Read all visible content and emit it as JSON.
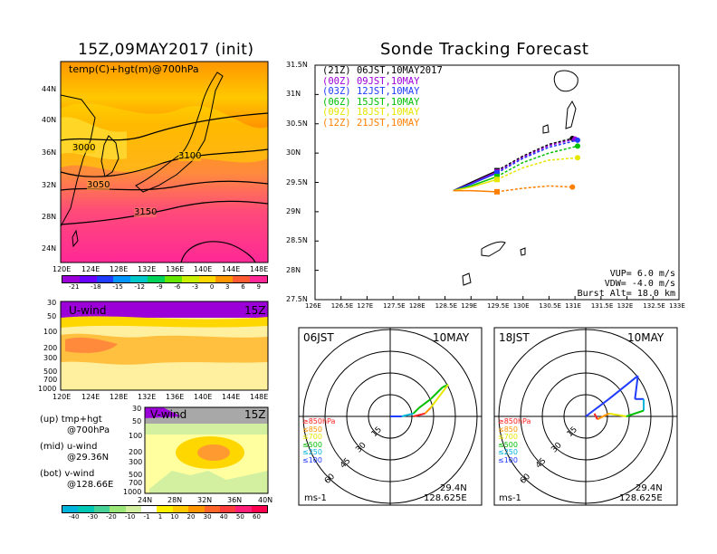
{
  "left": {
    "title": "15Z,09MAY2017 (init)",
    "map_label": "temp(C)+hgt(m)@700hPa",
    "lat_ticks": [
      "44N",
      "40N",
      "36N",
      "32N",
      "28N",
      "24N"
    ],
    "lon_ticks": [
      "120E",
      "124E",
      "128E",
      "132E",
      "136E",
      "140E",
      "144E",
      "148E"
    ],
    "contours": [
      "3000",
      "3100",
      "3050",
      "3150"
    ],
    "temp_colorbar": {
      "labels": [
        "-21",
        "-18",
        "-15",
        "-12",
        "-9",
        "-6",
        "-3",
        "0",
        "3",
        "6",
        "9"
      ],
      "colors": [
        "#9b00d9",
        "#6a00ff",
        "#1f3cff",
        "#0096ff",
        "#00c8c8",
        "#00d25a",
        "#64e600",
        "#c8f000",
        "#ffd700",
        "#ff9600",
        "#ff5a32",
        "#ff2896"
      ]
    },
    "uwind": {
      "label": "U-wind",
      "time": "15Z",
      "p_ticks": [
        "30",
        "50",
        "100",
        "200",
        "300",
        "500",
        "700",
        "1000"
      ],
      "lon_ticks": [
        "120E",
        "124E",
        "128E",
        "132E",
        "136E",
        "140E",
        "144E",
        "148E"
      ]
    },
    "vwind": {
      "label": "V-wind",
      "time": "15Z",
      "p_ticks": [
        "30",
        "50",
        "100",
        "200",
        "300",
        "500",
        "700",
        "1000"
      ],
      "lat_ticks": [
        "24N",
        "28N",
        "32N",
        "36N",
        "40N"
      ]
    },
    "wind_colorbar": {
      "labels": [
        "-40",
        "-30",
        "-20",
        "-10",
        "-1",
        "1",
        "10",
        "20",
        "30",
        "40",
        "50",
        "60"
      ],
      "colors": [
        "#00b4dc",
        "#00c8b4",
        "#46d296",
        "#9be678",
        "#d2f0a0",
        "#ffffff",
        "#fff000",
        "#ffc800",
        "#ff9600",
        "#ff6428",
        "#ff3c3c",
        "#ff1e78"
      ]
    },
    "notes": [
      {
        "tag": "(up)",
        "text": "tmp+hgt",
        "sub": "@700hPa"
      },
      {
        "tag": "(mid)",
        "text": "u-wind",
        "sub": "@29.36N"
      },
      {
        "tag": "(bot)",
        "text": "v-wind",
        "sub": "@128.66E"
      }
    ]
  },
  "chart_data": {
    "type": "line",
    "title": "Sonde Tracking Forecast",
    "xlim": [
      126,
      133
    ],
    "ylim": [
      27.5,
      31.5
    ],
    "x_ticks": [
      "126E",
      "126.5E",
      "127E",
      "127.5E",
      "128E",
      "128.5E",
      "129E",
      "129.5E",
      "130E",
      "130.5E",
      "131E",
      "131.5E",
      "132E",
      "132.5E",
      "133E"
    ],
    "y_ticks": [
      "31.5N",
      "31N",
      "30.5N",
      "30N",
      "29.5N",
      "29N",
      "28.5N",
      "28N",
      "27.5N"
    ],
    "launch": {
      "lon": 128.66,
      "lat": 29.36
    },
    "series": [
      {
        "name": "(21Z)",
        "label": "06JST,10MAY2017",
        "color": "#000000",
        "points": [
          [
            128.66,
            29.36
          ],
          [
            129.0,
            29.5
          ],
          [
            129.5,
            29.7
          ],
          [
            130.0,
            29.95
          ],
          [
            130.5,
            30.15
          ],
          [
            130.95,
            30.25
          ]
        ]
      },
      {
        "name": "(00Z)",
        "label": "09JST,10MAY",
        "color": "#9b00d9",
        "points": [
          [
            128.66,
            29.36
          ],
          [
            129.0,
            29.48
          ],
          [
            129.5,
            29.68
          ],
          [
            130.0,
            29.93
          ],
          [
            130.5,
            30.13
          ],
          [
            131.0,
            30.24
          ]
        ]
      },
      {
        "name": "(03Z)",
        "label": "12JST,10MAY",
        "color": "#1f3cff",
        "points": [
          [
            128.66,
            29.36
          ],
          [
            129.0,
            29.47
          ],
          [
            129.5,
            29.66
          ],
          [
            130.0,
            29.91
          ],
          [
            130.5,
            30.1
          ],
          [
            131.05,
            30.22
          ]
        ]
      },
      {
        "name": "(06Z)",
        "label": "15JST,10MAY",
        "color": "#00c000",
        "points": [
          [
            128.66,
            29.36
          ],
          [
            129.0,
            29.44
          ],
          [
            129.5,
            29.6
          ],
          [
            130.0,
            29.84
          ],
          [
            130.5,
            30.0
          ],
          [
            131.05,
            30.12
          ]
        ]
      },
      {
        "name": "(09Z)",
        "label": "18JST,10MAY",
        "color": "#e6e600",
        "points": [
          [
            128.66,
            29.36
          ],
          [
            129.0,
            29.42
          ],
          [
            129.5,
            29.55
          ],
          [
            130.0,
            29.75
          ],
          [
            130.5,
            29.88
          ],
          [
            131.05,
            29.92
          ]
        ]
      },
      {
        "name": "(12Z)",
        "label": "21JST,10MAY",
        "color": "#ff8000",
        "points": [
          [
            128.66,
            29.36
          ],
          [
            129.0,
            29.36
          ],
          [
            129.5,
            29.34
          ],
          [
            130.0,
            29.4
          ],
          [
            130.5,
            29.44
          ],
          [
            130.95,
            29.42
          ]
        ]
      }
    ],
    "params": [
      "VUP= 6.0 m/s",
      "VDW= -4.0 m/s",
      "Burst Alt= 18.0 km"
    ]
  },
  "hodographs": [
    {
      "time": "06JST",
      "date": "10MAY",
      "loc_lat": "29.4N",
      "loc_lon": "128.625E",
      "unit": "ms-1",
      "rings": [
        "15",
        "30",
        "45",
        "60"
      ]
    },
    {
      "time": "18JST",
      "date": "10MAY",
      "loc_lat": "29.4N",
      "loc_lon": "128.625E",
      "unit": "ms-1",
      "rings": [
        "15",
        "30",
        "45",
        "60"
      ]
    }
  ],
  "hodo_legend": [
    {
      "text": "≥850hPa",
      "color": "#ff2020"
    },
    {
      "text": "≤850",
      "color": "#ff9600"
    },
    {
      "text": "≤700",
      "color": "#e6e600"
    },
    {
      "text": "≤500",
      "color": "#00c000"
    },
    {
      "text": "≤250",
      "color": "#00b4dc"
    },
    {
      "text": "≤100",
      "color": "#1f3cff"
    }
  ]
}
